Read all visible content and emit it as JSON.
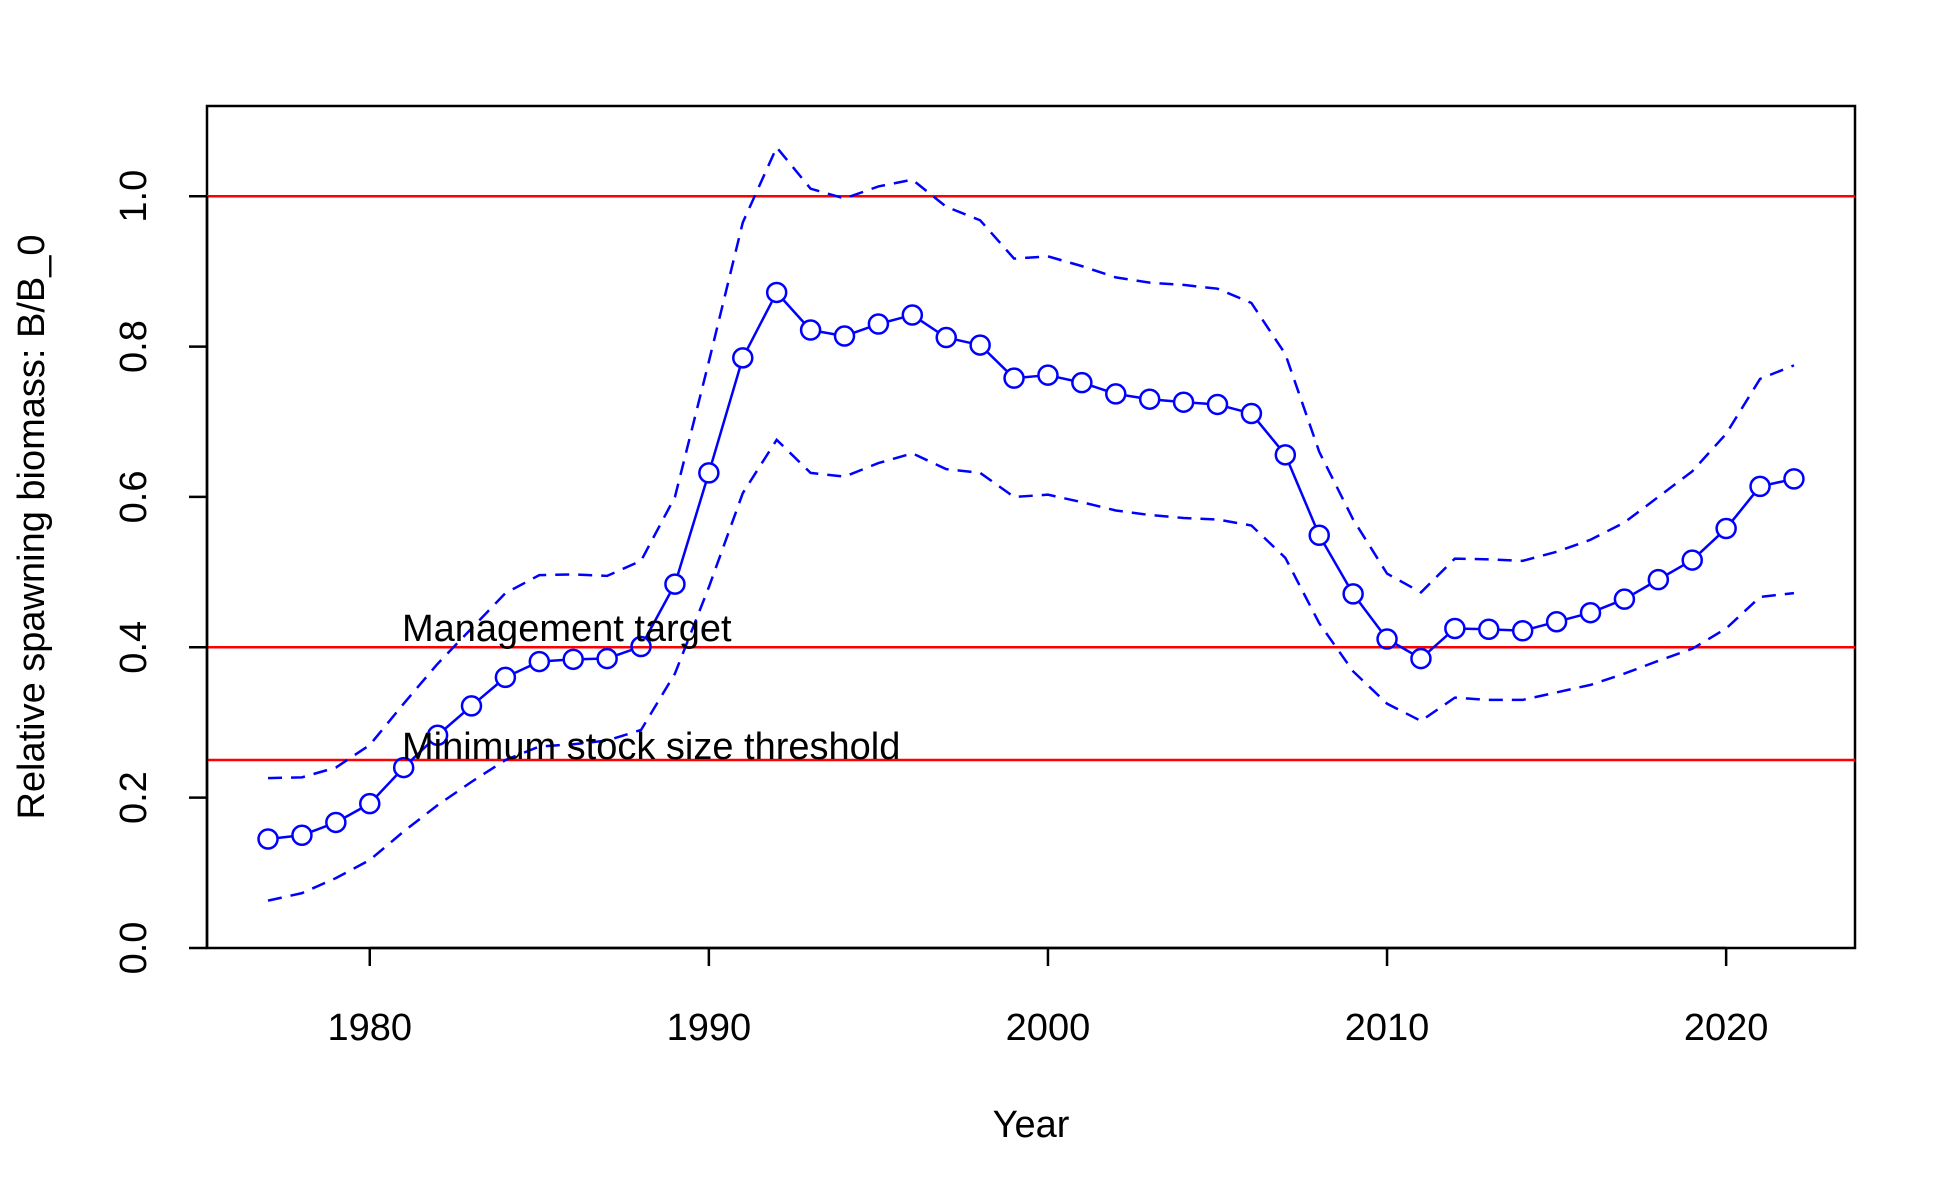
{
  "chart_data": {
    "type": "line",
    "title": "",
    "xlabel": "Year",
    "ylabel": "Relative spawning biomass: B/B_0",
    "xlim": [
      1975.2,
      2023.8
    ],
    "ylim": [
      0,
      1.12
    ],
    "x_ticks": [
      1980,
      1990,
      2000,
      2010,
      2020
    ],
    "y_ticks": [
      0.0,
      0.2,
      0.4,
      0.6,
      0.8,
      1.0
    ],
    "x_tick_labels": [
      "1980",
      "1990",
      "2000",
      "2010",
      "2020"
    ],
    "y_tick_labels": [
      "0.0",
      "0.2",
      "0.4",
      "0.6",
      "0.8",
      "1.0"
    ],
    "grid": false,
    "years": [
      1977,
      1978,
      1979,
      1980,
      1981,
      1982,
      1983,
      1984,
      1985,
      1986,
      1987,
      1988,
      1989,
      1990,
      1991,
      1992,
      1993,
      1994,
      1995,
      1996,
      1997,
      1998,
      1999,
      2000,
      2001,
      2002,
      2003,
      2004,
      2005,
      2006,
      2007,
      2008,
      2009,
      2010,
      2011,
      2012,
      2013,
      2014,
      2015,
      2016,
      2017,
      2018,
      2019,
      2020,
      2021,
      2022
    ],
    "series": [
      {
        "style": "line-points",
        "color": "#0000ff",
        "values": [
          0.145,
          0.15,
          0.167,
          0.192,
          0.24,
          0.283,
          0.322,
          0.36,
          0.381,
          0.384,
          0.385,
          0.401,
          0.484,
          0.632,
          0.785,
          0.872,
          0.822,
          0.814,
          0.83,
          0.842,
          0.812,
          0.802,
          0.758,
          0.762,
          0.752,
          0.737,
          0.73,
          0.726,
          0.723,
          0.711,
          0.656,
          0.549,
          0.471,
          0.411,
          0.385,
          0.425,
          0.424,
          0.422,
          0.434,
          0.446,
          0.464,
          0.49,
          0.516,
          0.558,
          0.614,
          0.624
        ]
      },
      {
        "style": "dashed",
        "color": "#0000ff",
        "values": [
          0.226,
          0.227,
          0.24,
          0.27,
          0.325,
          0.378,
          0.425,
          0.472,
          0.496,
          0.497,
          0.495,
          0.515,
          0.6,
          0.78,
          0.965,
          1.065,
          1.01,
          0.997,
          1.013,
          1.022,
          0.986,
          0.968,
          0.917,
          0.92,
          0.907,
          0.892,
          0.885,
          0.882,
          0.877,
          0.858,
          0.79,
          0.66,
          0.57,
          0.498,
          0.473,
          0.518,
          0.517,
          0.515,
          0.527,
          0.543,
          0.566,
          0.6,
          0.634,
          0.684,
          0.757,
          0.775
        ]
      },
      {
        "style": "dashed",
        "color": "#0000ff",
        "values": [
          0.063,
          0.073,
          0.093,
          0.117,
          0.155,
          0.19,
          0.221,
          0.25,
          0.268,
          0.271,
          0.276,
          0.29,
          0.365,
          0.48,
          0.605,
          0.676,
          0.632,
          0.627,
          0.645,
          0.658,
          0.637,
          0.632,
          0.6,
          0.603,
          0.593,
          0.582,
          0.576,
          0.572,
          0.57,
          0.562,
          0.519,
          0.432,
          0.368,
          0.325,
          0.302,
          0.333,
          0.33,
          0.33,
          0.34,
          0.35,
          0.365,
          0.382,
          0.398,
          0.425,
          0.467,
          0.472
        ]
      }
    ],
    "reference_lines": [
      {
        "y": 1.0,
        "color": "#ff0000",
        "label": ""
      },
      {
        "y": 0.4,
        "color": "#ff0000",
        "label": "Management target"
      },
      {
        "y": 0.25,
        "color": "#ff0000",
        "label": "Minimum stock size threshold"
      }
    ]
  }
}
